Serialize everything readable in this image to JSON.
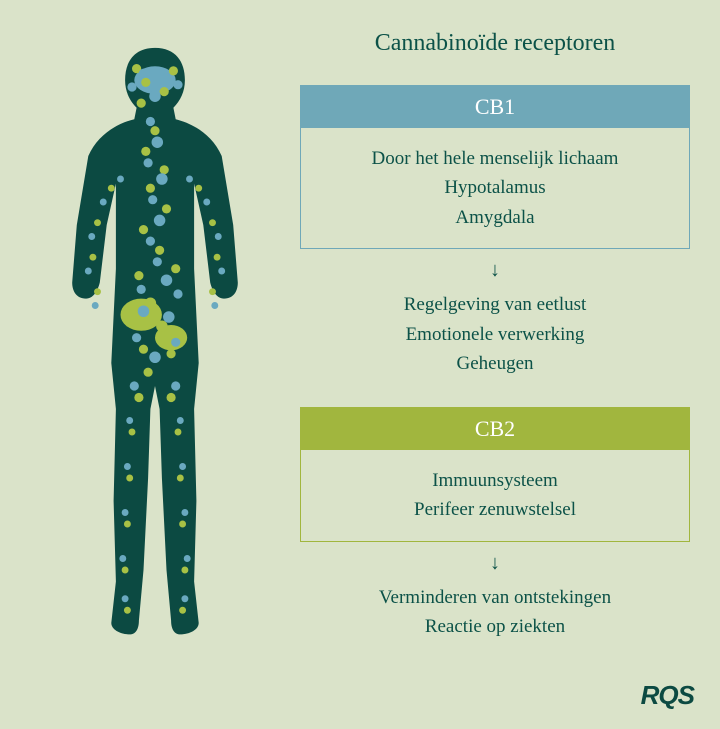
{
  "background_color": "#dae3c9",
  "text_color": "#0c5248",
  "body_fill": "#0c4a42",
  "title": "Cannabinoïde receptoren",
  "title_fontsize": 24,
  "body_fontsize": 19,
  "header_fontsize": 22,
  "cb1": {
    "label": "CB1",
    "header_bg": "#6fa8b8",
    "border_color": "#6fa8b8",
    "dot_color": "#6aa9c0",
    "locations": [
      "Door het hele menselijk lichaam",
      "Hypotalamus",
      "Amygdala"
    ],
    "effects": [
      "Regelgeving van eetlust",
      "Emotionele verwerking",
      "Geheugen"
    ]
  },
  "cb2": {
    "label": "CB2",
    "header_bg": "#a1b63e",
    "border_color": "#a1b63e",
    "dot_color": "#a8c145",
    "locations": [
      "Immuunsysteem",
      "Perifeer zenuwstelsel"
    ],
    "effects": [
      "Verminderen van ontstekingen",
      "Reactie op ziekten"
    ]
  },
  "arrow_glyph": "↓",
  "logo": "RQS",
  "logo_color": "#0c4a42",
  "human_svg": {
    "viewbox_w": 200,
    "viewbox_h": 520,
    "organs_color": "#a8c145",
    "brain_color": "#6aa9c0",
    "dots_blue": [
      [
        90,
        28,
        4
      ],
      [
        110,
        32,
        4
      ],
      [
        80,
        40,
        4
      ],
      [
        120,
        38,
        4
      ],
      [
        100,
        48,
        5
      ],
      [
        96,
        70,
        4
      ],
      [
        102,
        88,
        5
      ],
      [
        94,
        106,
        4
      ],
      [
        106,
        120,
        5
      ],
      [
        98,
        138,
        4
      ],
      [
        104,
        156,
        5
      ],
      [
        96,
        174,
        4
      ],
      [
        102,
        192,
        4
      ],
      [
        110,
        208,
        5
      ],
      [
        120,
        220,
        4
      ],
      [
        88,
        216,
        4
      ],
      [
        70,
        120,
        3
      ],
      [
        55,
        140,
        3
      ],
      [
        45,
        170,
        3
      ],
      [
        42,
        200,
        3
      ],
      [
        48,
        230,
        3
      ],
      [
        130,
        120,
        3
      ],
      [
        145,
        140,
        3
      ],
      [
        155,
        170,
        3
      ],
      [
        158,
        200,
        3
      ],
      [
        152,
        230,
        3
      ],
      [
        90,
        235,
        5
      ],
      [
        112,
        240,
        5
      ],
      [
        84,
        258,
        4
      ],
      [
        118,
        262,
        4
      ],
      [
        100,
        275,
        5
      ],
      [
        82,
        300,
        4
      ],
      [
        118,
        300,
        4
      ],
      [
        78,
        330,
        3
      ],
      [
        122,
        330,
        3
      ],
      [
        76,
        370,
        3
      ],
      [
        124,
        370,
        3
      ],
      [
        74,
        410,
        3
      ],
      [
        126,
        410,
        3
      ],
      [
        72,
        450,
        3
      ],
      [
        128,
        450,
        3
      ],
      [
        74,
        485,
        3
      ],
      [
        126,
        485,
        3
      ]
    ],
    "dots_green": [
      [
        84,
        24,
        4
      ],
      [
        116,
        26,
        4
      ],
      [
        92,
        36,
        4
      ],
      [
        108,
        44,
        4
      ],
      [
        88,
        54,
        4
      ],
      [
        100,
        78,
        4
      ],
      [
        92,
        96,
        4
      ],
      [
        108,
        112,
        4
      ],
      [
        96,
        128,
        4
      ],
      [
        110,
        146,
        4
      ],
      [
        90,
        164,
        4
      ],
      [
        104,
        182,
        4
      ],
      [
        118,
        198,
        4
      ],
      [
        86,
        204,
        4
      ],
      [
        62,
        128,
        3
      ],
      [
        50,
        158,
        3
      ],
      [
        46,
        188,
        3
      ],
      [
        50,
        218,
        3
      ],
      [
        138,
        128,
        3
      ],
      [
        150,
        158,
        3
      ],
      [
        154,
        188,
        3
      ],
      [
        150,
        218,
        3
      ],
      [
        96,
        228,
        5
      ],
      [
        106,
        248,
        5
      ],
      [
        90,
        268,
        4
      ],
      [
        114,
        272,
        4
      ],
      [
        94,
        288,
        4
      ],
      [
        86,
        310,
        4
      ],
      [
        114,
        310,
        4
      ],
      [
        80,
        340,
        3
      ],
      [
        120,
        340,
        3
      ],
      [
        78,
        380,
        3
      ],
      [
        122,
        380,
        3
      ],
      [
        76,
        420,
        3
      ],
      [
        124,
        420,
        3
      ],
      [
        74,
        460,
        3
      ],
      [
        126,
        460,
        3
      ],
      [
        76,
        495,
        3
      ],
      [
        124,
        495,
        3
      ]
    ]
  }
}
